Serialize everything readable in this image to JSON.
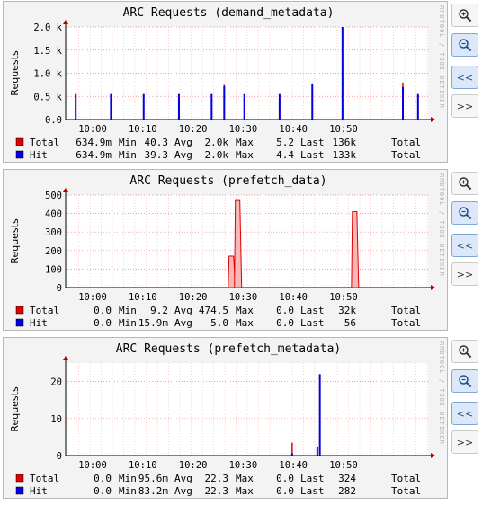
{
  "watermark": "RRDTOOL / TOBI OETIKER",
  "buttons": {
    "zoom_in": "zoom-in",
    "zoom_out": "zoom-out",
    "prev": "<<",
    "next": ">>"
  },
  "colors": {
    "total": "#e00000",
    "hit": "#0000e0",
    "grid": "#f08080",
    "axis": "#000000",
    "total_fill": "#f8b8b8"
  },
  "chart_data": [
    {
      "type": "area",
      "title": "ARC Requests (demand_metadata)",
      "ylabel": "Requests",
      "x_ticks": [
        "10:00",
        "10:10",
        "10:20",
        "10:30",
        "10:40",
        "10:50"
      ],
      "y_ticks": [
        "0.0",
        "0.5 k",
        "1.0 k",
        "1.5 k",
        "2.0 k"
      ],
      "ylim": [
        0,
        2000
      ],
      "series": [
        {
          "name": "Total",
          "points": [
            [
              0.04,
              500
            ],
            [
              0.18,
              500
            ],
            [
              0.31,
              500
            ],
            [
              0.45,
              500
            ],
            [
              0.58,
              500
            ],
            [
              0.63,
              750
            ],
            [
              0.71,
              500
            ],
            [
              0.85,
              500
            ],
            [
              0.98,
              750
            ],
            [
              1.1,
              1200
            ],
            [
              1.34,
              800
            ],
            [
              1.4,
              500
            ]
          ]
        },
        {
          "name": "Hit",
          "points": [
            [
              0.04,
              550
            ],
            [
              0.18,
              550
            ],
            [
              0.31,
              550
            ],
            [
              0.45,
              550
            ],
            [
              0.58,
              550
            ],
            [
              0.63,
              720
            ],
            [
              0.71,
              550
            ],
            [
              0.85,
              550
            ],
            [
              0.98,
              780
            ],
            [
              1.1,
              2000
            ],
            [
              1.34,
              700
            ],
            [
              1.4,
              550
            ]
          ]
        }
      ],
      "legend": [
        {
          "name": "Total",
          "total": "634.9m",
          "min_label": "Min",
          "min": "40.3",
          "avg_label": "Avg",
          "avg": "2.0k",
          "max_label": "Max",
          "max": "5.2",
          "last_label": "Last",
          "last": "136k",
          "end_label": "Total"
        },
        {
          "name": "Hit",
          "total": "634.9m",
          "min_label": "Min",
          "min": "39.3",
          "avg_label": "Avg",
          "avg": "2.0k",
          "max_label": "Max",
          "max": "4.4",
          "last_label": "Last",
          "last": "133k",
          "end_label": "Total"
        }
      ]
    },
    {
      "type": "area",
      "title": "ARC Requests (prefetch_data)",
      "ylabel": "Requests",
      "x_ticks": [
        "10:00",
        "10:10",
        "10:20",
        "10:30",
        "10:40",
        "10:50"
      ],
      "y_ticks": [
        "0",
        "100",
        "200",
        "300",
        "400",
        "500"
      ],
      "ylim": [
        0,
        500
      ],
      "series": [
        {
          "name": "Total",
          "points": [
            [
              0.66,
              170
            ],
            [
              0.685,
              470
            ],
            [
              1.15,
              410
            ]
          ]
        },
        {
          "name": "Hit",
          "points": []
        }
      ],
      "legend": [
        {
          "name": "Total",
          "total": "0.0",
          "min_label": "Min",
          "min": "9.2",
          "avg_label": "Avg",
          "avg": "474.5",
          "max_label": "Max",
          "max": "0.0",
          "last_label": "Last",
          "last": "32k",
          "end_label": "Total"
        },
        {
          "name": "Hit",
          "total": "0.0",
          "min_label": "Min",
          "min": "15.9m",
          "avg_label": "Avg",
          "avg": "5.0",
          "max_label": "Max",
          "max": "0.0",
          "last_label": "Last",
          "last": "56",
          "end_label": "Total"
        }
      ]
    },
    {
      "type": "area",
      "title": "ARC Requests (prefetch_metadata)",
      "ylabel": "Requests",
      "x_ticks": [
        "10:00",
        "10:10",
        "10:20",
        "10:30",
        "10:40",
        "10:50"
      ],
      "y_ticks": [
        "0",
        "10",
        "20"
      ],
      "ylim": [
        0,
        25
      ],
      "series": [
        {
          "name": "Total",
          "points": [
            [
              0.9,
              3.5
            ]
          ]
        },
        {
          "name": "Hit",
          "points": [
            [
              0.9,
              0.6
            ],
            [
              1.0,
              2.4
            ],
            [
              1.01,
              22
            ]
          ]
        }
      ],
      "legend": [
        {
          "name": "Total",
          "total": "0.0",
          "min_label": "Min",
          "min": "95.6m",
          "avg_label": "Avg",
          "avg": "22.3",
          "max_label": "Max",
          "max": "0.0",
          "last_label": "Last",
          "last": "324",
          "end_label": "Total"
        },
        {
          "name": "Hit",
          "total": "0.0",
          "min_label": "Min",
          "min": "83.2m",
          "avg_label": "Avg",
          "avg": "22.3",
          "max_label": "Max",
          "max": "0.0",
          "last_label": "Last",
          "last": "282",
          "end_label": "Total"
        }
      ]
    }
  ]
}
